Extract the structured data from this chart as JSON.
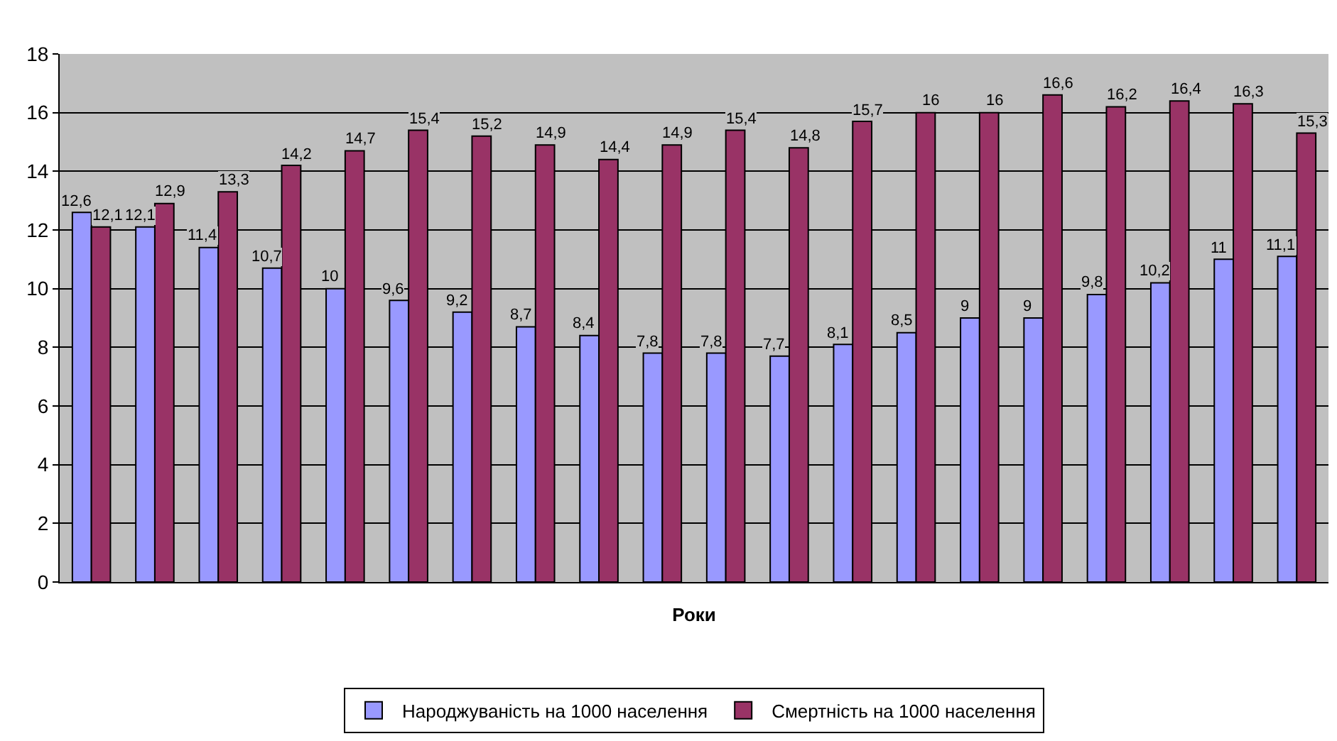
{
  "chart_data": {
    "type": "bar",
    "xlabel": "Роки",
    "categories": [
      null,
      null,
      null,
      null,
      null,
      null,
      null,
      null,
      null,
      null,
      null,
      null,
      null,
      null,
      null,
      null,
      null,
      null,
      null,
      null
    ],
    "series": [
      {
        "name": "Народжуваність на 1000 населення",
        "color": "#9999ff",
        "values": [
          12.6,
          12.1,
          11.4,
          10.7,
          10,
          9.6,
          9.2,
          8.7,
          8.4,
          7.8,
          7.8,
          7.7,
          8.1,
          8.5,
          9,
          9,
          9.8,
          10.2,
          11,
          11.1
        ],
        "value_labels": [
          "12,6",
          "12,1",
          "11,4",
          "10,7",
          "10",
          "9,6",
          "9,2",
          "8,7",
          "8,4",
          "7,8",
          "7,8",
          "7,7",
          "8,1",
          "8,5",
          "9",
          "9",
          "9,8",
          "10,2",
          "11",
          "11,1"
        ]
      },
      {
        "name": "Смертність на 1000 населення",
        "color": "#993366",
        "values": [
          12.1,
          12.9,
          13.3,
          14.2,
          14.7,
          15.4,
          15.2,
          14.9,
          14.4,
          14.9,
          15.4,
          14.8,
          15.7,
          16,
          16,
          16.6,
          16.2,
          16.4,
          16.3,
          15.3
        ],
        "value_labels": [
          "12,1",
          "12,9",
          "13,3",
          "14,2",
          "14,7",
          "15,4",
          "15,2",
          "14,9",
          "14,4",
          "14,9",
          "15,4",
          "14,8",
          "15,7",
          "16",
          "16",
          "16,6",
          "16,2",
          "16,4",
          "16,3",
          "15,3"
        ]
      }
    ],
    "ylim": [
      0,
      18
    ],
    "yticks": [
      0,
      2,
      4,
      6,
      8,
      10,
      12,
      14,
      16,
      18
    ],
    "grid": "y",
    "legend": "bottom",
    "tick_labels": "y"
  }
}
